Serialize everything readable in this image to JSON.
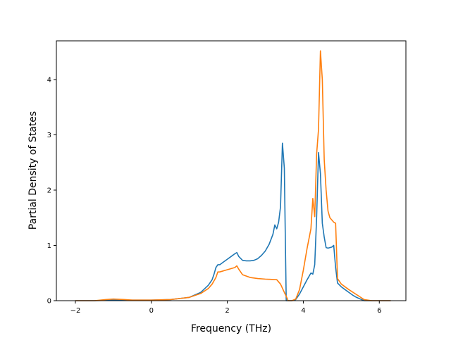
{
  "chart_data": {
    "type": "line",
    "title": "",
    "xlabel": "Frequency (THz)",
    "ylabel": "Partial Density of States",
    "xlim": [
      -2.5,
      6.7
    ],
    "ylim": [
      0,
      4.7
    ],
    "xticks": [
      -2,
      0,
      2,
      4,
      6
    ],
    "yticks": [
      0,
      1,
      2,
      3,
      4
    ],
    "xtick_labels": [
      "−2",
      "0",
      "2",
      "4",
      "6"
    ],
    "ytick_labels": [
      "0",
      "1",
      "2",
      "3",
      "4"
    ],
    "grid": false,
    "legend": "none",
    "series": [
      {
        "color": "#1f77b4",
        "x": [
          -2.0,
          -1.5,
          -1.0,
          -0.5,
          0.0,
          0.5,
          1.0,
          1.3,
          1.5,
          1.6,
          1.65,
          1.7,
          1.75,
          1.8,
          1.9,
          2.0,
          2.1,
          2.2,
          2.25,
          2.3,
          2.4,
          2.5,
          2.6,
          2.7,
          2.8,
          2.9,
          3.0,
          3.1,
          3.2,
          3.25,
          3.3,
          3.35,
          3.4,
          3.45,
          3.5,
          3.55,
          3.6,
          3.7,
          3.8,
          3.9,
          4.0,
          4.1,
          4.2,
          4.25,
          4.3,
          4.35,
          4.4,
          4.45,
          4.5,
          4.55,
          4.6,
          4.65,
          4.7,
          4.75,
          4.8,
          4.85,
          4.9,
          5.0,
          5.1,
          5.2,
          5.3,
          5.4,
          5.5,
          5.6,
          5.8,
          6.0,
          6.3
        ],
        "y": [
          0.0,
          0.0,
          0.01,
          0.01,
          0.01,
          0.02,
          0.06,
          0.15,
          0.28,
          0.38,
          0.48,
          0.6,
          0.65,
          0.65,
          0.7,
          0.75,
          0.8,
          0.85,
          0.87,
          0.8,
          0.73,
          0.72,
          0.72,
          0.73,
          0.76,
          0.82,
          0.9,
          1.02,
          1.2,
          1.37,
          1.3,
          1.42,
          1.7,
          2.85,
          2.4,
          0.0,
          0.0,
          0.0,
          0.02,
          0.12,
          0.25,
          0.38,
          0.5,
          0.48,
          0.65,
          1.5,
          2.68,
          2.3,
          1.4,
          1.15,
          0.96,
          0.95,
          0.96,
          0.97,
          1.0,
          0.6,
          0.32,
          0.25,
          0.2,
          0.15,
          0.1,
          0.06,
          0.03,
          0.0,
          0.0,
          0.0,
          0.0
        ]
      },
      {
        "color": "#ff7f0e",
        "x": [
          -2.0,
          -1.5,
          -1.2,
          -1.0,
          -0.7,
          -0.5,
          0.0,
          0.5,
          1.0,
          1.3,
          1.5,
          1.6,
          1.7,
          1.75,
          1.8,
          2.0,
          2.2,
          2.25,
          2.3,
          2.4,
          2.6,
          2.8,
          3.0,
          3.3,
          3.4,
          3.5,
          3.55,
          3.6,
          3.7,
          3.8,
          3.9,
          4.0,
          4.1,
          4.2,
          4.25,
          4.3,
          4.35,
          4.4,
          4.45,
          4.5,
          4.55,
          4.6,
          4.65,
          4.7,
          4.8,
          4.85,
          4.9,
          5.0,
          5.2,
          5.4,
          5.6,
          5.8,
          6.0,
          6.3
        ],
        "y": [
          0.0,
          0.0,
          0.02,
          0.03,
          0.02,
          0.01,
          0.01,
          0.02,
          0.06,
          0.13,
          0.22,
          0.3,
          0.42,
          0.52,
          0.52,
          0.56,
          0.6,
          0.63,
          0.57,
          0.47,
          0.42,
          0.4,
          0.39,
          0.38,
          0.3,
          0.15,
          0.08,
          0.0,
          0.0,
          0.03,
          0.2,
          0.55,
          0.95,
          1.3,
          1.85,
          1.52,
          2.65,
          3.1,
          4.52,
          4.0,
          2.55,
          2.0,
          1.62,
          1.5,
          1.42,
          1.4,
          0.4,
          0.3,
          0.2,
          0.11,
          0.02,
          0.0,
          0.0,
          0.0
        ]
      }
    ]
  }
}
